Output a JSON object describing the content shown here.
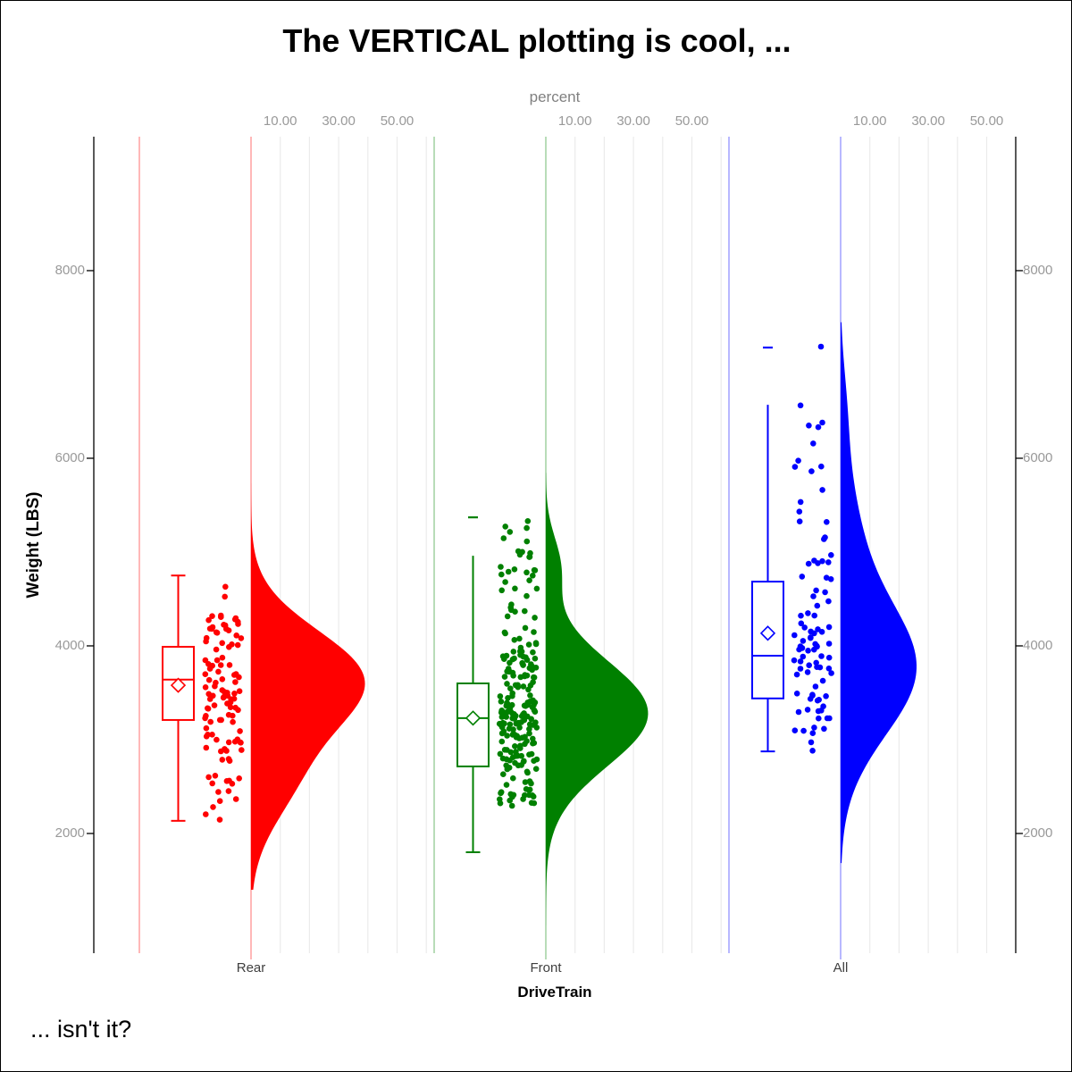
{
  "title": "The VERTICAL plotting is cool, ...",
  "footnote": "... isn't it?",
  "chart_data": {
    "type": "raincloud",
    "description": "Vertical raincloud plot: per DriveTrain group a box plot, jittered data points and a right-side half-violin density on a percent scale",
    "title": "The VERTICAL plotting is cool, ...",
    "footnote": "... isn't it?",
    "x_axis": {
      "label": "DriveTrain",
      "categories": [
        "Rear",
        "Front",
        "All"
      ]
    },
    "y_axis": {
      "label": "Weight (LBS)",
      "tick_values": [
        2000,
        4000,
        6000,
        8000
      ],
      "ylim": [
        724,
        9428
      ],
      "mirrored_right": true
    },
    "top_axis": {
      "label": "percent",
      "tick_labels": [
        "10.00",
        "30.00",
        "50.00"
      ],
      "labeled_values": [
        10,
        30,
        50
      ],
      "gridline_values": [
        10,
        20,
        30,
        40,
        50,
        60
      ],
      "max": 60
    },
    "groups": [
      {
        "name": "Rear",
        "color": "#ff0000",
        "n": 110,
        "box": {
          "q1": 3210,
          "median": 3640,
          "q3": 3990,
          "mean": 3580,
          "whisker_low": 2135,
          "whisker_high": 4750,
          "top_cap": true,
          "bottom_cap": true,
          "outlier_max": null
        },
        "violin": {
          "span": [
            1400,
            5730
          ],
          "peak_halfwidth_percent": 39,
          "components": [
            [
              3650,
              520,
              0.85
            ],
            [
              2600,
              500,
              0.3
            ]
          ]
        },
        "jitter": {
          "min": 2135,
          "max": 4755,
          "seed": 101,
          "extra_points": []
        }
      },
      {
        "name": "Front",
        "color": "#008000",
        "n": 226,
        "box": {
          "q1": 2715,
          "median": 3230,
          "q3": 3600,
          "mean": 3230,
          "whisker_low": 1800,
          "whisker_high": 4960,
          "top_cap": false,
          "bottom_cap": true,
          "outlier_max": 5370
        },
        "violin": {
          "span": [
            1020,
            5845
          ],
          "peak_halfwidth_percent": 35,
          "components": [
            [
              3280,
              560,
              0.9
            ],
            [
              4850,
              320,
              0.12
            ]
          ]
        },
        "jitter": {
          "min": 1850,
          "max": 5390,
          "seed": 202,
          "extra_points": []
        }
      },
      {
        "name": "All",
        "color": "#0000ff",
        "n": 92,
        "box": {
          "q1": 3440,
          "median": 3895,
          "q3": 4685,
          "mean": 4135,
          "whisker_low": 2875,
          "whisker_high": 6570,
          "top_cap": false,
          "bottom_cap": true,
          "outlier_max": 7180
        },
        "violin": {
          "span": [
            1685,
            7450
          ],
          "peak_halfwidth_percent": 26,
          "components": [
            [
              3750,
              700,
              1.0
            ],
            [
              5200,
              650,
              0.2
            ],
            [
              6500,
              500,
              0.07
            ]
          ]
        },
        "jitter": {
          "min": 2875,
          "max": 6570,
          "seed": 303,
          "extra_points": [
            7190
          ]
        }
      }
    ]
  }
}
